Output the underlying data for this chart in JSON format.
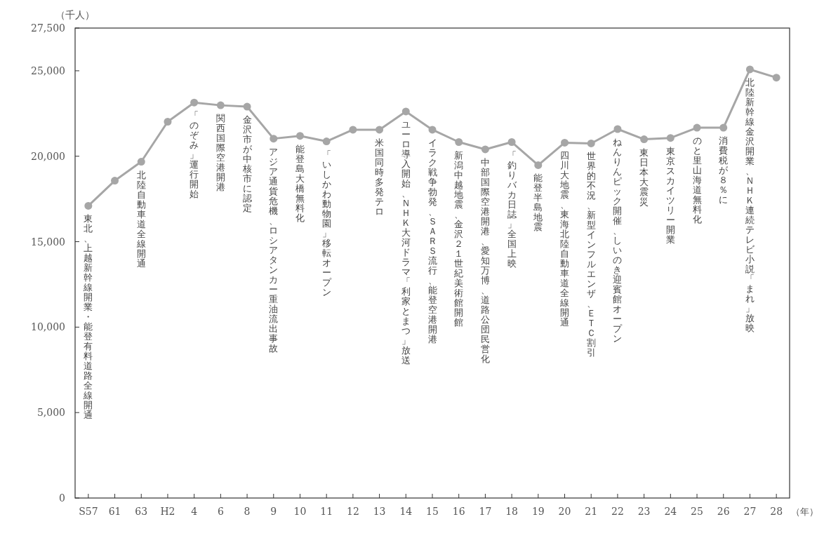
{
  "chart_data": {
    "type": "line",
    "ylabel": "（千人）",
    "xlabel": "（年）",
    "categories": [
      "S57",
      "61",
      "63",
      "H2",
      "4",
      "6",
      "8",
      "9",
      "10",
      "11",
      "12",
      "13",
      "14",
      "15",
      "16",
      "17",
      "18",
      "19",
      "20",
      "21",
      "22",
      "23",
      "24",
      "25",
      "26",
      "27",
      "28"
    ],
    "series": [
      {
        "color": "#a6a6a6",
        "values": [
          17100,
          18570,
          19680,
          22020,
          23140,
          22980,
          22900,
          21030,
          21190,
          20870,
          21550,
          21550,
          22620,
          21550,
          20830,
          20400,
          20830,
          19480,
          20790,
          20750,
          21590,
          20990,
          21070,
          21670,
          21670,
          25080,
          24600
        ]
      }
    ],
    "ylim": [
      0,
      27500
    ],
    "yticks": [
      {
        "value": 0,
        "label": "0"
      },
      {
        "value": 5000,
        "label": "5,000"
      },
      {
        "value": 10000,
        "label": "10,000"
      },
      {
        "value": 15000,
        "label": "15,000"
      },
      {
        "value": 20000,
        "label": "20,000"
      },
      {
        "value": 25000,
        "label": "25,000"
      },
      {
        "value": 27500,
        "label": "27,500"
      }
    ],
    "marker": "circle",
    "grid": false,
    "annotations": [
      "東北、上越新幹線開業・能登有料道路全線開通",
      "北陸自動車道全線開通",
      "「のぞみ」運行開始",
      "関西国際空港開港",
      "金沢市が中核市に認定",
      "アジア通貨危機、ロシアタンカー重油流出事故",
      "能登島大橋無料化",
      "「いしかわ動物園」移転オープン",
      "米国同時多発テロ",
      "ユーロ導入開始、ＮＨＫ大河ドラマ「利家とまつ」放送",
      "イラク戦争勃発、ＳＡＲＳ流行、能登空港開港",
      "新潟中越地震、金沢２１世紀美術館開館",
      "中部国際空港開港、愛知万博、道路公団民営化",
      "「釣りバカ日誌」全国上映",
      "能登半島地震",
      "四川大地震、東海北陸自動車道全線開通",
      "世界的不況、新型インフルエンザ、ＥＴＣ割引",
      "ねんりんピック開催、しいのき迎賓館オープン",
      "東日本大震災",
      "東京スカイツリー開業",
      "のと里山海道無料化",
      "消費税が８％に",
      "北陸新幹線金沢開業、ＮＨＫ連続テレビ小説「まれ」放映"
    ]
  }
}
